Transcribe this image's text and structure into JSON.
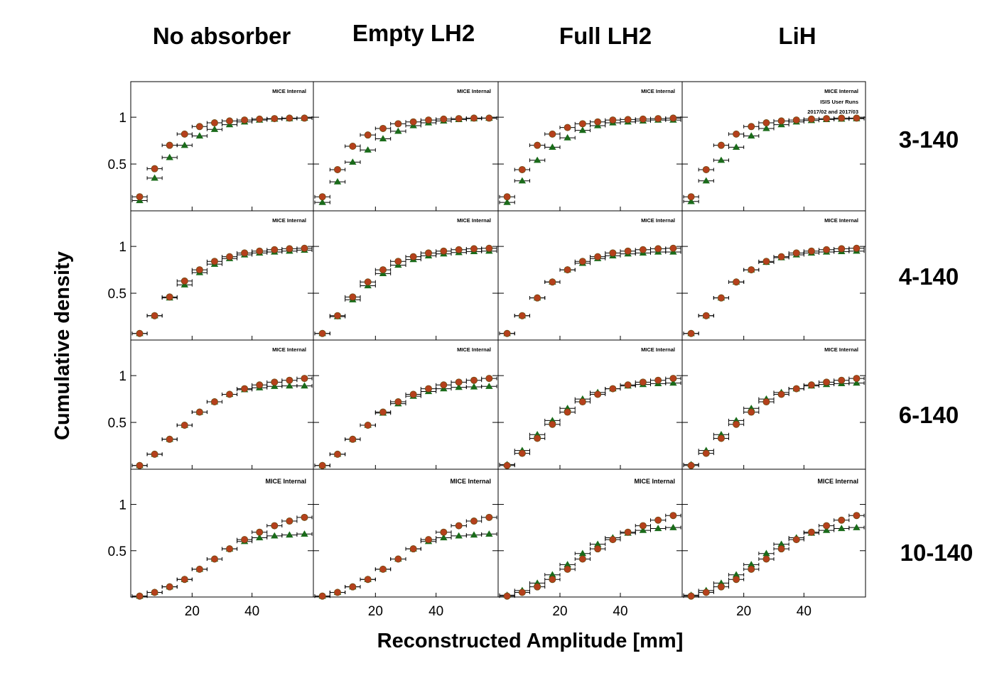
{
  "figure": {
    "column_titles": [
      "No absorber",
      "Empty LH2",
      "Full LH2",
      "LiH"
    ],
    "row_labels": [
      "3-140",
      "4-140",
      "6-140",
      "10-140"
    ],
    "xlabel": "Reconstructed Amplitude [mm]",
    "ylabel": "Cumulative density",
    "watermark": "MICE Internal",
    "info_lines": [
      "ISIS User Runs",
      "2017/02 and 2017/03"
    ]
  },
  "chart_data": {
    "type": "scatter",
    "layout": "grid 4 rows x 4 columns, shared axes",
    "x_ticks": [
      20,
      40
    ],
    "y_ticks": [
      0.5,
      1
    ],
    "xlim": [
      0,
      60
    ],
    "ylim": [
      0,
      1.38
    ],
    "x_bin_width": 5,
    "x": [
      2.5,
      7.5,
      12.5,
      17.5,
      22.5,
      27.5,
      32.5,
      37.5,
      42.5,
      47.5,
      52.5,
      57.5
    ],
    "series_colors": [
      "#b5401c",
      "#1a6b1a"
    ],
    "series_markers": [
      "circle",
      "triangle"
    ],
    "panels": [
      {
        "row": "3-140",
        "column": "No absorber",
        "series": [
          {
            "values": [
              0.15,
              0.45,
              0.7,
              0.82,
              0.9,
              0.94,
              0.96,
              0.97,
              0.98,
              0.985,
              0.99,
              0.99
            ]
          },
          {
            "values": [
              0.11,
              0.35,
              0.57,
              0.7,
              0.8,
              0.87,
              0.92,
              0.95,
              0.97,
              0.98,
              0.985,
              0.99
            ]
          }
        ]
      },
      {
        "row": "3-140",
        "column": "Empty LH2",
        "series": [
          {
            "values": [
              0.15,
              0.44,
              0.69,
              0.81,
              0.88,
              0.93,
              0.95,
              0.97,
              0.98,
              0.985,
              0.99,
              0.99
            ]
          },
          {
            "values": [
              0.09,
              0.31,
              0.52,
              0.65,
              0.77,
              0.85,
              0.91,
              0.94,
              0.96,
              0.975,
              0.985,
              0.99
            ]
          }
        ]
      },
      {
        "row": "3-140",
        "column": "Full LH2",
        "series": [
          {
            "values": [
              0.15,
              0.44,
              0.7,
              0.82,
              0.89,
              0.93,
              0.95,
              0.97,
              0.975,
              0.98,
              0.985,
              0.99
            ]
          },
          {
            "values": [
              0.09,
              0.32,
              0.54,
              0.68,
              0.78,
              0.86,
              0.91,
              0.94,
              0.95,
              0.96,
              0.97,
              0.97
            ]
          }
        ]
      },
      {
        "row": "3-140",
        "column": "LiH",
        "series": [
          {
            "values": [
              0.15,
              0.44,
              0.7,
              0.82,
              0.9,
              0.94,
              0.96,
              0.97,
              0.98,
              0.985,
              0.99,
              0.99
            ]
          },
          {
            "values": [
              0.1,
              0.32,
              0.54,
              0.68,
              0.8,
              0.88,
              0.92,
              0.95,
              0.965,
              0.975,
              0.98,
              0.985
            ]
          }
        ]
      },
      {
        "row": "4-140",
        "column": "No absorber",
        "series": [
          {
            "values": [
              0.07,
              0.26,
              0.46,
              0.63,
              0.75,
              0.84,
              0.89,
              0.93,
              0.95,
              0.965,
              0.975,
              0.98
            ]
          },
          {
            "values": [
              0.07,
              0.26,
              0.45,
              0.59,
              0.72,
              0.81,
              0.87,
              0.91,
              0.93,
              0.94,
              0.95,
              0.96
            ]
          }
        ]
      },
      {
        "row": "4-140",
        "column": "Empty LH2",
        "series": [
          {
            "values": [
              0.07,
              0.26,
              0.46,
              0.62,
              0.75,
              0.84,
              0.89,
              0.93,
              0.95,
              0.965,
              0.975,
              0.98
            ]
          },
          {
            "values": [
              0.07,
              0.25,
              0.43,
              0.58,
              0.71,
              0.8,
              0.86,
              0.9,
              0.92,
              0.935,
              0.945,
              0.95
            ]
          }
        ]
      },
      {
        "row": "4-140",
        "column": "Full LH2",
        "series": [
          {
            "values": [
              0.07,
              0.26,
              0.45,
              0.62,
              0.75,
              0.84,
              0.89,
              0.93,
              0.95,
              0.965,
              0.975,
              0.98
            ]
          },
          {
            "values": [
              0.07,
              0.26,
              0.45,
              0.62,
              0.75,
              0.82,
              0.87,
              0.9,
              0.92,
              0.93,
              0.94,
              0.94
            ]
          }
        ]
      },
      {
        "row": "4-140",
        "column": "LiH",
        "series": [
          {
            "values": [
              0.07,
              0.26,
              0.45,
              0.62,
              0.75,
              0.84,
              0.89,
              0.93,
              0.95,
              0.965,
              0.975,
              0.98
            ]
          },
          {
            "values": [
              0.07,
              0.26,
              0.45,
              0.62,
              0.75,
              0.83,
              0.88,
              0.91,
              0.93,
              0.94,
              0.945,
              0.95
            ]
          }
        ]
      },
      {
        "row": "6-140",
        "column": "No absorber",
        "series": [
          {
            "values": [
              0.04,
              0.16,
              0.32,
              0.47,
              0.61,
              0.72,
              0.8,
              0.86,
              0.9,
              0.93,
              0.95,
              0.97
            ]
          },
          {
            "values": [
              0.04,
              0.16,
              0.32,
              0.47,
              0.61,
              0.72,
              0.8,
              0.85,
              0.87,
              0.885,
              0.89,
              0.89
            ]
          }
        ]
      },
      {
        "row": "6-140",
        "column": "Empty LH2",
        "series": [
          {
            "values": [
              0.04,
              0.16,
              0.32,
              0.47,
              0.61,
              0.72,
              0.8,
              0.86,
              0.9,
              0.93,
              0.95,
              0.97
            ]
          },
          {
            "values": [
              0.04,
              0.16,
              0.32,
              0.47,
              0.6,
              0.7,
              0.78,
              0.83,
              0.86,
              0.875,
              0.88,
              0.885
            ]
          }
        ]
      },
      {
        "row": "6-140",
        "column": "Full LH2",
        "series": [
          {
            "values": [
              0.04,
              0.17,
              0.33,
              0.48,
              0.61,
              0.72,
              0.8,
              0.86,
              0.9,
              0.93,
              0.95,
              0.97
            ]
          },
          {
            "values": [
              0.05,
              0.2,
              0.37,
              0.52,
              0.65,
              0.75,
              0.82,
              0.86,
              0.89,
              0.905,
              0.915,
              0.92
            ]
          }
        ]
      },
      {
        "row": "6-140",
        "column": "LiH",
        "series": [
          {
            "values": [
              0.04,
              0.17,
              0.33,
              0.48,
              0.61,
              0.72,
              0.8,
              0.86,
              0.9,
              0.93,
              0.95,
              0.97
            ]
          },
          {
            "values": [
              0.05,
              0.2,
              0.37,
              0.52,
              0.65,
              0.75,
              0.82,
              0.86,
              0.89,
              0.905,
              0.915,
              0.92
            ]
          }
        ]
      },
      {
        "row": "10-140",
        "column": "No absorber",
        "series": [
          {
            "values": [
              0.01,
              0.05,
              0.11,
              0.19,
              0.3,
              0.41,
              0.52,
              0.62,
              0.7,
              0.77,
              0.82,
              0.86
            ]
          },
          {
            "values": [
              0.01,
              0.05,
              0.11,
              0.19,
              0.3,
              0.41,
              0.52,
              0.6,
              0.64,
              0.66,
              0.67,
              0.68
            ]
          }
        ]
      },
      {
        "row": "10-140",
        "column": "Empty LH2",
        "series": [
          {
            "values": [
              0.01,
              0.05,
              0.11,
              0.19,
              0.3,
              0.41,
              0.52,
              0.62,
              0.7,
              0.77,
              0.82,
              0.86
            ]
          },
          {
            "values": [
              0.01,
              0.05,
              0.11,
              0.19,
              0.3,
              0.41,
              0.52,
              0.6,
              0.64,
              0.66,
              0.67,
              0.68
            ]
          }
        ]
      },
      {
        "row": "10-140",
        "column": "Full LH2",
        "series": [
          {
            "values": [
              0.01,
              0.05,
              0.11,
              0.19,
              0.3,
              0.41,
              0.52,
              0.62,
              0.7,
              0.77,
              0.83,
              0.88
            ]
          },
          {
            "values": [
              0.02,
              0.07,
              0.15,
              0.24,
              0.35,
              0.47,
              0.57,
              0.64,
              0.69,
              0.72,
              0.74,
              0.75
            ]
          }
        ]
      },
      {
        "row": "10-140",
        "column": "LiH",
        "series": [
          {
            "values": [
              0.01,
              0.05,
              0.11,
              0.19,
              0.3,
              0.41,
              0.52,
              0.62,
              0.7,
              0.77,
              0.83,
              0.88
            ]
          },
          {
            "values": [
              0.02,
              0.07,
              0.15,
              0.24,
              0.35,
              0.47,
              0.57,
              0.64,
              0.69,
              0.72,
              0.74,
              0.75
            ]
          }
        ]
      }
    ]
  }
}
